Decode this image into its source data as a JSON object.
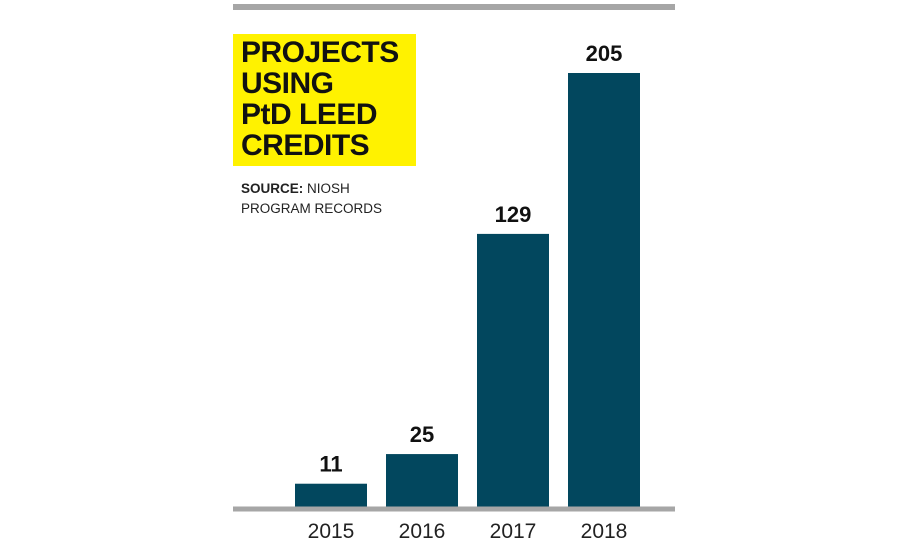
{
  "title": {
    "lines": [
      "PROJECTS",
      "USING",
      "PtD LEED",
      "CREDITS"
    ]
  },
  "source": {
    "label": "SOURCE:",
    "line1": "NIOSH",
    "line2": "PROGRAM RECORDS"
  },
  "colors": {
    "bar": "#02475e",
    "title_background": "#fff200",
    "rule": "#a6a6a6",
    "text": "#111111"
  },
  "chart_data": {
    "type": "bar",
    "title": "PROJECTS USING PtD LEED CREDITS",
    "categories": [
      "2015",
      "2016",
      "2017",
      "2018"
    ],
    "values": [
      11,
      25,
      129,
      205
    ],
    "data_labels": [
      "11",
      "25",
      "129",
      "205"
    ],
    "xlabel": "",
    "ylabel": "",
    "ylim": [
      0,
      205
    ],
    "grid": false,
    "legend": "none"
  }
}
